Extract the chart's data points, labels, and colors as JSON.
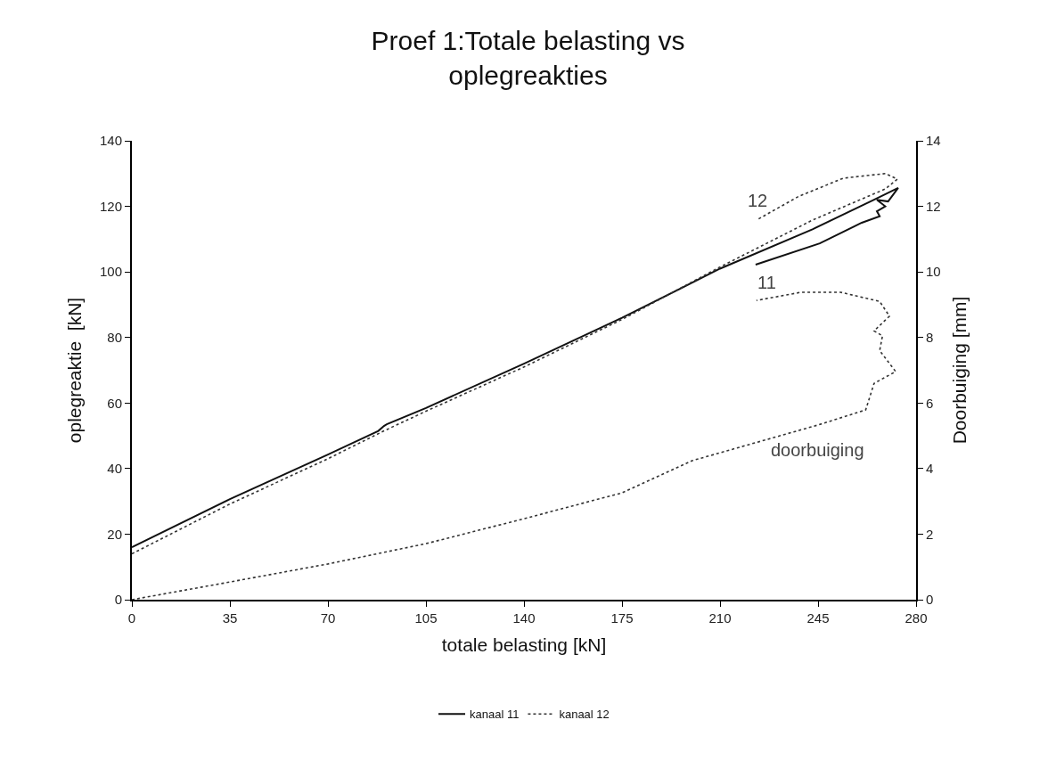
{
  "chart_data": {
    "type": "line",
    "title": "Proef 1:Totale belasting vs\noplegreakties",
    "xlabel": "totale belasting [kN]",
    "ylabel": "oplegreaktie  [kN]",
    "y2label": "Doorbuiging [mm]",
    "xlim": [
      0,
      280
    ],
    "xticks": [
      0,
      35,
      70,
      105,
      140,
      175,
      210,
      245,
      280
    ],
    "ylim": [
      0,
      140
    ],
    "yticks": [
      0,
      20,
      40,
      60,
      80,
      100,
      120,
      140
    ],
    "y2lim": [
      0,
      14
    ],
    "y2ticks": [
      0,
      2,
      4,
      6,
      8,
      10,
      12,
      14
    ],
    "legend": "bottom",
    "marker": "none",
    "series": [
      {
        "name": "kanaal 11",
        "color": "#111111",
        "line_style": "solid",
        "x": [
          0,
          35,
          70,
          88,
          90,
          91,
          105,
          140,
          175,
          210,
          243,
          265,
          273.6,
          270,
          266,
          269,
          266,
          267,
          260.6,
          245.6,
          222.7
        ],
        "values": [
          16,
          30.7,
          44.3,
          51.5,
          53,
          53.5,
          58.5,
          72,
          86,
          101,
          113,
          122,
          125.6,
          121.5,
          122,
          120,
          118.5,
          117,
          115,
          108.7,
          102.2
        ]
      },
      {
        "name": "kanaal 12",
        "color": "#333333",
        "line_style": "dotted",
        "x": [
          0,
          35,
          70,
          90,
          105,
          140,
          175,
          210,
          243,
          269,
          273.3,
          269,
          254,
          238,
          223
        ],
        "values": [
          14,
          29.2,
          43,
          51.5,
          57.5,
          71,
          85.5,
          101.5,
          115.8,
          125.3,
          128.3,
          130,
          128.6,
          123,
          115.8
        ]
      },
      {
        "color": "#333333",
        "line_style": "dotted",
        "axis": "y2",
        "x": [
          0,
          35,
          70,
          105,
          140,
          175,
          200,
          245,
          262,
          265,
          272.7,
          267,
          268,
          265,
          270.5,
          267,
          253,
          239,
          223
        ],
        "values": [
          0,
          0.54,
          1.09,
          1.71,
          2.47,
          3.26,
          4.24,
          5.33,
          5.79,
          6.6,
          6.96,
          7.6,
          8.05,
          8.2,
          8.65,
          9.1,
          9.38,
          9.38,
          9.13
        ]
      }
    ],
    "annotations": [
      "11",
      "12",
      "doorbuiging"
    ]
  }
}
